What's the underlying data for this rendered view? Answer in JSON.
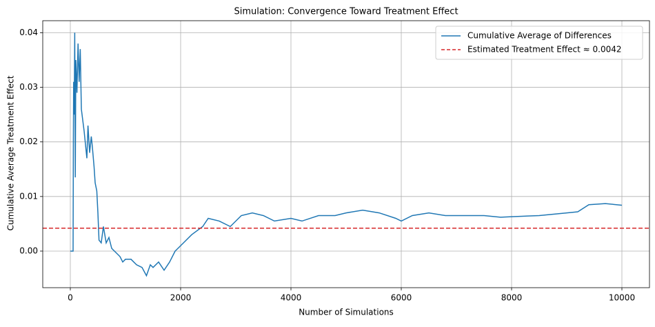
{
  "chart_data": {
    "type": "line",
    "title": "Simulation: Convergence Toward Treatment Effect",
    "xlabel": "Number of Simulations",
    "ylabel": "Cumulative Average Treatment Effect",
    "x": [
      0,
      50,
      55,
      60,
      70,
      80,
      90,
      100,
      120,
      140,
      160,
      180,
      200,
      250,
      300,
      320,
      350,
      380,
      400,
      430,
      450,
      480,
      500,
      520,
      560,
      600,
      650,
      700,
      750,
      800,
      900,
      950,
      1000,
      1100,
      1200,
      1300,
      1380,
      1450,
      1500,
      1600,
      1700,
      1800,
      1900,
      2000,
      2200,
      2400,
      2500,
      2700,
      2900,
      3100,
      3300,
      3500,
      3700,
      4000,
      4200,
      4500,
      4800,
      5000,
      5300,
      5600,
      5900,
      6000,
      6200,
      6500,
      6800,
      7200,
      7500,
      7800,
      8000,
      8500,
      9000,
      9200,
      9400,
      9700,
      10000
    ],
    "series": [
      {
        "name": "Cumulative Average of Differences",
        "color": "#1f77b4",
        "values": [
          0,
          0,
          0.02,
          0.031,
          0.025,
          0.04,
          0.0135,
          0.035,
          0.029,
          0.038,
          0.031,
          0.037,
          0.026,
          0.022,
          0.017,
          0.023,
          0.018,
          0.021,
          0.019,
          0.0155,
          0.0125,
          0.011,
          0.007,
          0.002,
          0.0015,
          0.0045,
          0.0015,
          0.0025,
          0.0005,
          0,
          -0.001,
          -0.002,
          -0.0015,
          -0.0015,
          -0.0025,
          -0.003,
          -0.0045,
          -0.0025,
          -0.003,
          -0.002,
          -0.0035,
          -0.002,
          0,
          0.001,
          0.003,
          0.0045,
          0.006,
          0.0055,
          0.0045,
          0.0065,
          0.007,
          0.0065,
          0.0055,
          0.006,
          0.0055,
          0.0065,
          0.0065,
          0.007,
          0.0075,
          0.007,
          0.006,
          0.0055,
          0.0065,
          0.007,
          0.0065,
          0.0065,
          0.0065,
          0.0062,
          0.0063,
          0.0065,
          0.007,
          0.0072,
          0.0085,
          0.0087,
          0.0084
        ]
      }
    ],
    "hline": {
      "name": "Estimated Treatment Effect ≈ 0.0042",
      "value": 0.0042,
      "color": "#d62728"
    },
    "xlim": [
      -500,
      10500
    ],
    "ylim": [
      -0.0067,
      0.0422
    ],
    "xticks": [
      0,
      2000,
      4000,
      6000,
      8000,
      10000
    ],
    "yticks": [
      {
        "value": 0,
        "label": "0.00"
      },
      0.01,
      0.02,
      0.03,
      0.04
    ],
    "grid": true,
    "legend": "upper right"
  }
}
